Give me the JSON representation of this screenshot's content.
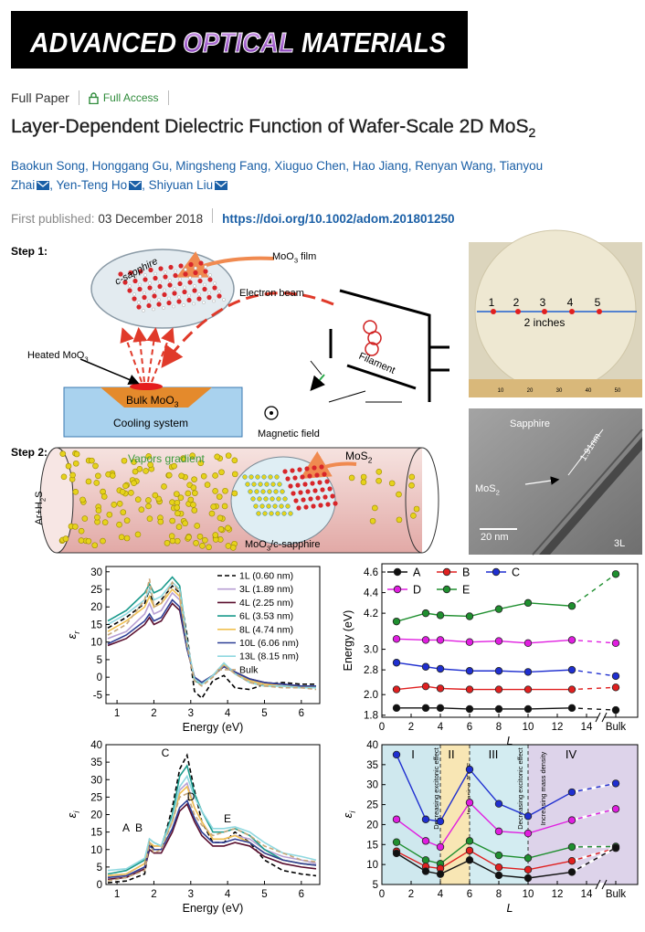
{
  "header": {
    "journal": [
      "ADVANCED",
      "OPTICAL",
      "MATERIALS"
    ],
    "article_type": "Full Paper",
    "access": "Full Access",
    "title": [
      "Layer‐Dependent Dielectric Function of Wafer‐Scale 2D MoS",
      "2"
    ],
    "authors": [
      {
        "name": "Baokun Song"
      },
      {
        "name": "Honggang Gu"
      },
      {
        "name": "Mingsheng Fang"
      },
      {
        "name": "Xiuguo Chen"
      },
      {
        "name": "Hao Jiang"
      },
      {
        "name": "Renyan Wang"
      },
      {
        "name": "Tianyou Zhai",
        "email": true
      },
      {
        "name": "Yen‐Teng Ho",
        "email": true
      },
      {
        "name": "Shiyuan Liu",
        "email": true
      }
    ],
    "author_separator": ",",
    "published_label": "First published:",
    "published_date": "03 December 2018",
    "doi": "https://doi.org/10.1002/adom.201801250"
  },
  "figure": {
    "schematic_labels": [
      [
        "Step 1:"
      ],
      [
        "c-sapphire"
      ],
      [
        "MoO",
        "3",
        " film"
      ],
      [
        "Electron beam"
      ],
      [
        "Heated MoO",
        "3"
      ],
      [
        "Bulk MoO",
        "3"
      ],
      [
        "Cooling system"
      ],
      [
        "Filament"
      ],
      [
        "Magnetic field"
      ],
      [
        "Step 2:"
      ],
      [
        "Vapors gradient"
      ],
      [
        "MoS",
        "2"
      ],
      [
        "Ar+H",
        "2",
        "S"
      ],
      [
        "MoO",
        "3",
        "/c-sapphire"
      ]
    ],
    "wafer_labels": [
      "1",
      "2",
      "3",
      "4",
      "5",
      "2 inches"
    ],
    "ruler_labels": [
      "10",
      "20",
      "30",
      "40",
      "50"
    ],
    "tem_labels": [
      [
        "Sapphire"
      ],
      [
        "1.91nm"
      ],
      [
        "MoS",
        "2"
      ],
      [
        "20 nm"
      ],
      [
        "3L"
      ]
    ]
  },
  "chart_data": [
    {
      "type": "line",
      "x": [
        0.75,
        1.25,
        1.75,
        1.88,
        2.0,
        2.2,
        2.5,
        2.7,
        2.9,
        3.1,
        3.3,
        3.6,
        3.9,
        4.2,
        4.6,
        5.0,
        5.5,
        6.0,
        6.4
      ],
      "xlabel": "Energy (eV)",
      "ylabel": [
        "ε",
        "r"
      ],
      "xlim": [
        0.7,
        6.5
      ],
      "xticks": [
        1,
        2,
        3,
        4,
        5,
        6
      ],
      "ylim": [
        -7.5,
        31.5
      ],
      "yticks": [
        -5,
        0,
        5,
        10,
        15,
        20,
        25,
        30
      ],
      "legend": "upper right",
      "series": [
        {
          "name": "1L (0.60 nm)",
          "color": "#000000",
          "style": "dashed",
          "values": [
            14,
            17,
            21,
            25,
            20,
            22,
            26,
            24,
            12,
            -4,
            -6,
            -1,
            0.5,
            -3,
            -3.5,
            -2,
            -1.5,
            -2,
            -2
          ]
        },
        {
          "name": "3L (1.89 nm)",
          "color": "#b79fd3",
          "style": "solid",
          "values": [
            11,
            13,
            18,
            21,
            18,
            19,
            24,
            22,
            9,
            0,
            -1.5,
            0.5,
            3.5,
            1.5,
            -1,
            -2,
            -2,
            -2.5,
            -2.5
          ]
        },
        {
          "name": "4L (2.25 nm)",
          "color": "#5a0f2e",
          "style": "solid",
          "values": [
            9,
            11,
            15,
            17,
            15,
            16,
            21,
            19,
            8,
            0,
            -1.5,
            0.5,
            3,
            1.5,
            -0.5,
            -1.5,
            -2,
            -2.5,
            -2.5
          ]
        },
        {
          "name": "6L (3.53 nm)",
          "color": "#1a9a8c",
          "style": "solid",
          "values": [
            16,
            19,
            24,
            26.5,
            24,
            25,
            28.5,
            26,
            10,
            -1,
            -2,
            0.5,
            4,
            1,
            -1.5,
            -2.5,
            -2.5,
            -3,
            -3
          ]
        },
        {
          "name": "8L (4.74 nm)",
          "color": "#f0c050",
          "style": "solid",
          "values": [
            13,
            16,
            20,
            23,
            20,
            21,
            25,
            23,
            9,
            -0.5,
            -2,
            0.5,
            3.5,
            1,
            -1,
            -2,
            -2.5,
            -2.5,
            -3
          ]
        },
        {
          "name": "10L (6.06 nm)",
          "color": "#2e3f95",
          "style": "solid",
          "values": [
            9.5,
            12,
            16,
            18,
            16,
            17,
            22,
            20,
            8,
            0,
            -1.5,
            0.5,
            3,
            1.5,
            -0.5,
            -1.5,
            -2,
            -2.5,
            -2.5
          ]
        },
        {
          "name": "13L (8.15 nm)",
          "color": "#8fd8e0",
          "style": "solid",
          "values": [
            15,
            18,
            22,
            25,
            22,
            23,
            27,
            25,
            10,
            -0.5,
            -2,
            0.5,
            4,
            1,
            -1.5,
            -2.5,
            -2.5,
            -3,
            -3
          ]
        },
        {
          "name": "Bulk",
          "color": "#c7a678",
          "style": "dashed",
          "values": [
            12,
            15,
            22,
            28,
            20,
            21,
            27,
            24,
            9,
            -1,
            -2.5,
            0,
            3.5,
            1,
            -1.5,
            -2.5,
            -3,
            -3,
            -3.5
          ]
        }
      ]
    },
    {
      "type": "line",
      "x": [
        1,
        3,
        4,
        6,
        8,
        10,
        13,
        16
      ],
      "xlabel": "L",
      "ylabel": "Energy (eV)",
      "xlim": [
        0,
        17.5
      ],
      "xticks": [
        0,
        2,
        4,
        6,
        8,
        10,
        12,
        14,
        {
          "value": 16,
          "label": "Bulk"
        }
      ],
      "xbreak": 15,
      "ylim": [
        1.78,
        4.68
      ],
      "ybreaks": [
        [
          2.12,
          2.68
        ],
        [
          3.15,
          4.0
        ]
      ],
      "yticks": [
        1.8,
        {
          "value": 2,
          "label": "2.0"
        },
        2.8,
        {
          "value": 3,
          "label": "3.0"
        },
        4.2,
        4.4,
        4.6
      ],
      "marker": "circle",
      "legend": "upper left",
      "dashed_last_segment": true,
      "series": [
        {
          "name": "A",
          "color": "#111111",
          "values": [
            1.87,
            1.87,
            1.87,
            1.86,
            1.86,
            1.86,
            1.87,
            1.85
          ]
        },
        {
          "name": "B",
          "color": "#e02020",
          "values": [
            2.05,
            2.08,
            2.06,
            2.05,
            2.05,
            2.05,
            2.05,
            2.07
          ]
        },
        {
          "name": "C",
          "color": "#1f2fd0",
          "values": [
            2.87,
            2.83,
            2.81,
            2.79,
            2.79,
            2.78,
            2.8,
            2.74
          ]
        },
        {
          "name": "D",
          "color": "#e01ee0",
          "values": [
            3.1,
            3.09,
            3.09,
            3.07,
            3.08,
            3.06,
            3.09,
            3.06
          ]
        },
        {
          "name": "E",
          "color": "#1f8f2f",
          "values": [
            4.12,
            4.2,
            4.18,
            4.17,
            4.24,
            4.3,
            4.27,
            4.58
          ]
        }
      ]
    },
    {
      "type": "line",
      "x": [
        0.75,
        1.25,
        1.75,
        1.88,
        2.0,
        2.2,
        2.5,
        2.7,
        2.9,
        3.1,
        3.3,
        3.6,
        3.9,
        4.2,
        4.6,
        5.0,
        5.5,
        6.0,
        6.4
      ],
      "xlabel": "Energy (eV)",
      "ylabel": [
        "ε",
        "i"
      ],
      "xlim": [
        0.7,
        6.5
      ],
      "xticks": [
        1,
        2,
        3,
        4,
        5,
        6
      ],
      "ylim": [
        0,
        40
      ],
      "yticks": [
        0,
        5,
        10,
        15,
        20,
        25,
        30,
        35,
        40
      ],
      "annotations": [
        "A",
        "B",
        "C",
        "D",
        "E"
      ],
      "series": [
        {
          "color": "#000000",
          "style": "dashed",
          "values": [
            0.5,
            1,
            3,
            12,
            10,
            10,
            22,
            33,
            37,
            27,
            18,
            12,
            12,
            15,
            12,
            7,
            4,
            3,
            2.5
          ]
        },
        {
          "color": "#b79fd3",
          "style": "solid",
          "values": [
            2.5,
            3,
            6,
            12,
            11,
            11,
            18,
            27,
            29,
            22,
            18,
            13,
            13,
            14,
            13,
            10,
            8,
            7,
            6
          ]
        },
        {
          "color": "#5a0f2e",
          "style": "solid",
          "values": [
            1.5,
            2,
            4.5,
            10,
            9,
            9,
            15,
            21,
            23,
            18,
            14,
            11,
            11,
            12,
            11,
            8,
            6,
            5,
            4.5
          ]
        },
        {
          "color": "#1a9a8c",
          "style": "solid",
          "values": [
            3,
            4,
            7,
            13,
            12,
            11,
            20,
            31,
            34,
            26,
            21,
            15,
            15,
            16,
            14,
            10,
            7,
            6,
            5.5
          ]
        },
        {
          "color": "#f0c050",
          "style": "solid",
          "values": [
            2.5,
            3,
            6,
            12,
            11,
            11,
            18,
            26,
            28,
            22,
            18,
            13,
            13,
            14,
            12,
            9,
            7,
            6,
            5.5
          ]
        },
        {
          "color": "#2e3f95",
          "style": "solid",
          "values": [
            2,
            2.5,
            5,
            11,
            10,
            10,
            16,
            22,
            24,
            19,
            15,
            12,
            12,
            13,
            12,
            9,
            7,
            6,
            5.5
          ]
        },
        {
          "color": "#8fd8e0",
          "style": "solid",
          "values": [
            4,
            4.5,
            7.5,
            13,
            12,
            11,
            19,
            28,
            31,
            25,
            21,
            16,
            16,
            16.5,
            15,
            12,
            9,
            8,
            7
          ]
        },
        {
          "color": "#c7a678",
          "style": "dashed",
          "values": [
            1,
            2,
            4,
            12,
            9,
            10,
            18,
            25,
            26,
            20,
            17,
            14,
            15,
            16,
            14,
            11,
            9,
            7,
            6.5
          ]
        }
      ]
    },
    {
      "type": "line",
      "x": [
        1,
        3,
        4,
        6,
        8,
        10,
        13,
        16
      ],
      "xlabel": "L",
      "ylabel": [
        "ε",
        "i"
      ],
      "xlim": [
        0,
        17.5
      ],
      "xticks": [
        0,
        2,
        4,
        6,
        8,
        10,
        12,
        14,
        {
          "value": 16,
          "label": "Bulk"
        }
      ],
      "xbreak": 15,
      "ylim": [
        5,
        40
      ],
      "yticks": [
        5,
        10,
        15,
        20,
        25,
        30,
        35,
        40
      ],
      "marker": "circle",
      "dashed_last_segment": true,
      "regions": [
        {
          "label": "I",
          "from": 0,
          "to": 4,
          "color": "#cfe8ee",
          "note": "Decreasing excitonic effect"
        },
        {
          "label": "II",
          "from": 4,
          "to": 6,
          "color": "#f8e6b4",
          "note": "Increasing JDOS"
        },
        {
          "label": "III",
          "from": 6,
          "to": 10,
          "color": "#d3ecf1",
          "note": "Decreasing excitonic effect"
        },
        {
          "label": "IV",
          "from": 10,
          "to": 17.5,
          "color": "#ddd3ea",
          "note": "Increasing mass density"
        }
      ],
      "series": [
        {
          "color": "#1f2fd0",
          "values": [
            37.5,
            21.3,
            20.8,
            33.8,
            25.2,
            22.1,
            28.1,
            30.3
          ]
        },
        {
          "color": "#e01ee0",
          "values": [
            21.3,
            15.9,
            14.4,
            25.5,
            18.3,
            17.8,
            21.1,
            23.9
          ]
        },
        {
          "color": "#1f8f2f",
          "values": [
            15.6,
            11.1,
            10.2,
            15.9,
            12.3,
            11.6,
            14.4,
            14.5
          ]
        },
        {
          "color": "#e02020",
          "values": [
            13.3,
            9.5,
            9.0,
            13.5,
            9.3,
            8.7,
            10.9,
            14.1
          ]
        },
        {
          "color": "#111111",
          "values": [
            12.8,
            8.3,
            7.6,
            11.1,
            7.3,
            6.6,
            8.1,
            14.2
          ]
        }
      ]
    }
  ]
}
